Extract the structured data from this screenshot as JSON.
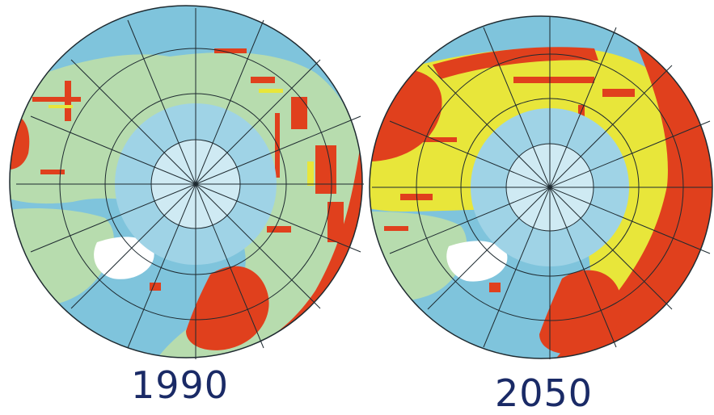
{
  "maps": [
    {
      "year": "1990",
      "scenario": "1990",
      "warm_level": 0.25
    },
    {
      "year": "2050",
      "scenario": "2050",
      "warm_level": 0.75
    }
  ],
  "colors": {
    "ocean": "#7fc4dc",
    "ocean_light": "#b9e1ee",
    "ice": "#cfeaf3",
    "tundra": "#b7dcae",
    "boreal": "#e8e63a",
    "forest": "#e0401d",
    "graticule": "#1e2a30",
    "label": "#1a2a66"
  }
}
